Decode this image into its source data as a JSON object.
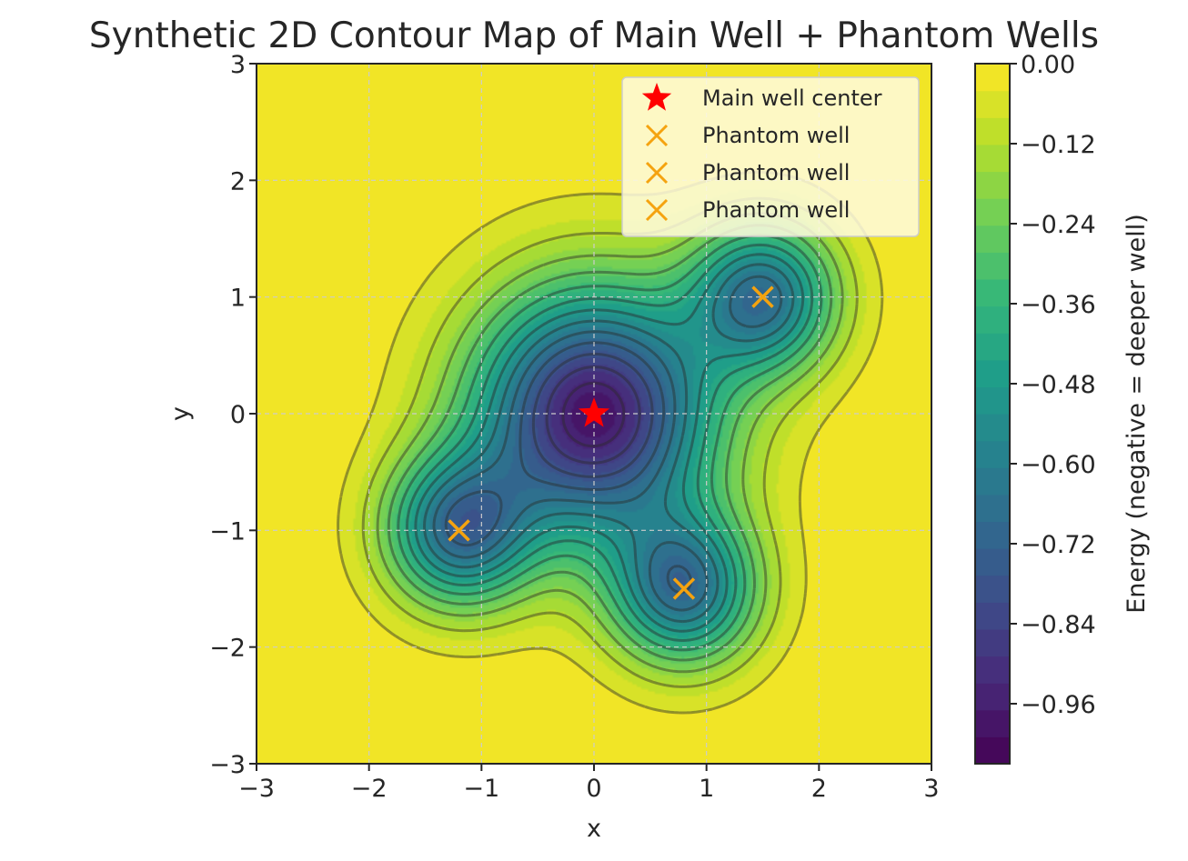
{
  "chart_data": {
    "type": "contour",
    "title": "Synthetic 2D Contour Map of Main Well + Phantom Wells",
    "xlabel": "x",
    "ylabel": "y",
    "xlim": [
      -3,
      3
    ],
    "ylim": [
      -3,
      3
    ],
    "x_ticks": [
      "−3",
      "−2",
      "−1",
      "0",
      "1",
      "2",
      "3"
    ],
    "y_ticks": [
      "−3",
      "−2",
      "−1",
      "0",
      "1",
      "2",
      "3"
    ],
    "grid": true,
    "colormap": "viridis",
    "colorbar": {
      "label": "Energy (negative = deeper well)",
      "range": [
        -1.05,
        0.0
      ],
      "ticks": [
        "0.00",
        "−0.12",
        "−0.24",
        "−0.36",
        "−0.48",
        "−0.60",
        "−0.72",
        "−0.84",
        "−0.96"
      ],
      "tick_values": [
        0.0,
        -0.12,
        -0.24,
        -0.36,
        -0.48,
        -0.6,
        -0.72,
        -0.84,
        -0.96
      ]
    },
    "main_well": {
      "x": 0,
      "y": 0,
      "name": "Main well center",
      "color": "#ff0000",
      "marker": "star"
    },
    "phantom_wells": [
      {
        "x": 1.5,
        "y": 1.0,
        "name": "Phantom well"
      },
      {
        "x": -1.2,
        "y": -1.0,
        "name": "Phantom well"
      },
      {
        "x": 0.8,
        "y": -1.5,
        "name": "Phantom well"
      }
    ],
    "phantom_color": "#f5a30f",
    "legend_position": "top-right"
  }
}
